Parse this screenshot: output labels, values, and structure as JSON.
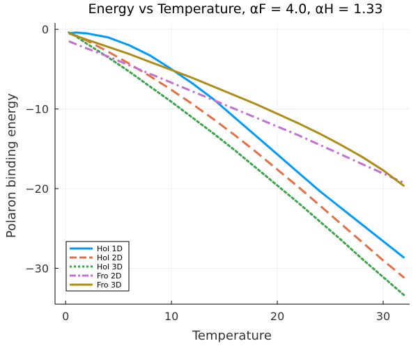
{
  "chart_data": {
    "type": "line",
    "title": "Energy vs Temperature, αF = 4.0, αH = 1.33",
    "xlabel": "Temperature",
    "ylabel": "Polaron binding energy",
    "xlim": [
      -1,
      32.5
    ],
    "ylim": [
      -34.5,
      0.8
    ],
    "xticks": [
      0,
      10,
      20,
      30
    ],
    "yticks": [
      0,
      -10,
      -20,
      -30
    ],
    "xtick_labels": [
      "0",
      "10",
      "20",
      "30"
    ],
    "ytick_labels": [
      "0",
      "−10",
      "−20",
      "−30"
    ],
    "grid": true,
    "legend_position": "bottom-left",
    "series": [
      {
        "name": "Hol 1D",
        "color": "#009af9",
        "style": "solid",
        "x": [
          0.3,
          1,
          2,
          4,
          6,
          8,
          10,
          12,
          14,
          16,
          18,
          20,
          22,
          24,
          26,
          28,
          30,
          32
        ],
        "y": [
          -0.5,
          -0.4,
          -0.5,
          -1.0,
          -2.0,
          -3.3,
          -5.0,
          -6.8,
          -8.8,
          -11.1,
          -13.4,
          -15.7,
          -18.0,
          -20.3,
          -22.4,
          -24.5,
          -26.6,
          -28.7
        ]
      },
      {
        "name": "Hol 2D",
        "color": "#e26f46",
        "style": "dash",
        "x": [
          0.3,
          1,
          2,
          4,
          6,
          8,
          10,
          12,
          14,
          16,
          18,
          20,
          22,
          24,
          26,
          28,
          30,
          32
        ],
        "y": [
          -0.5,
          -0.8,
          -1.4,
          -2.8,
          -4.3,
          -5.9,
          -7.6,
          -9.4,
          -11.3,
          -13.3,
          -15.4,
          -17.6,
          -19.8,
          -22.1,
          -24.4,
          -26.7,
          -29.0,
          -31.2
        ]
      },
      {
        "name": "Hol 3D",
        "color": "#3da44d",
        "style": "dot",
        "x": [
          0.3,
          1,
          2,
          4,
          6,
          8,
          10,
          12,
          14,
          16,
          18,
          20,
          22,
          24,
          26,
          28,
          30,
          32
        ],
        "y": [
          -0.4,
          -0.9,
          -1.8,
          -3.5,
          -5.3,
          -7.2,
          -9.1,
          -11.1,
          -13.1,
          -15.2,
          -17.4,
          -19.6,
          -21.8,
          -24.1,
          -26.4,
          -28.8,
          -31.1,
          -33.4
        ]
      },
      {
        "name": "Fro 2D",
        "color": "#c271d2",
        "style": "dashdot",
        "x": [
          0.3,
          2,
          4,
          6,
          8,
          10,
          12,
          14,
          16,
          18,
          20,
          22,
          24,
          26,
          28,
          30,
          32
        ],
        "y": [
          -1.5,
          -2.4,
          -3.4,
          -4.5,
          -5.6,
          -6.7,
          -7.8,
          -8.9,
          -10.0,
          -11.1,
          -12.2,
          -13.3,
          -14.5,
          -15.7,
          -16.9,
          -18.1,
          -19.3
        ]
      },
      {
        "name": "Fro 3D",
        "color": "#ac8d18",
        "style": "solid",
        "x": [
          0.3,
          2,
          4,
          6,
          8,
          10,
          12,
          14,
          16,
          18,
          20,
          22,
          24,
          26,
          28,
          30,
          32
        ],
        "y": [
          -0.5,
          -1.3,
          -2.2,
          -3.1,
          -4.1,
          -5.1,
          -6.1,
          -7.2,
          -8.3,
          -9.4,
          -10.6,
          -11.8,
          -13.1,
          -14.5,
          -16.0,
          -17.7,
          -19.7
        ]
      }
    ]
  }
}
